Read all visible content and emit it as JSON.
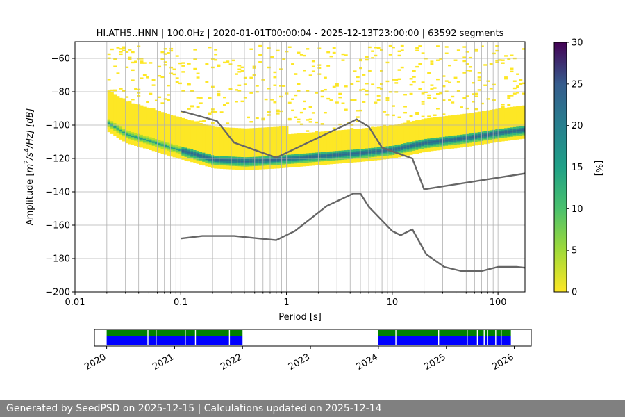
{
  "chart_data": {
    "type": "heatmap",
    "title": "HI.ATH5..HNN | 100.0Hz | 2020-01-01T00:00:04 - 2025-12-13T23:00:00 | 63592 segments",
    "xlabel": "Period [s]",
    "ylabel_parts": {
      "base": "Amplitude [",
      "m": "m",
      "exp1": "2",
      "s": "/s",
      "exp2": "4",
      "tail": "/Hz] [dB]"
    },
    "x_scale": "log",
    "xlim": [
      0.01,
      180
    ],
    "ylim": [
      -200,
      -50
    ],
    "x_ticks": [
      0.01,
      0.1,
      1,
      10,
      100
    ],
    "x_tick_labels": [
      "0.01",
      "0.1",
      "1",
      "10",
      "100"
    ],
    "y_ticks": [
      -60,
      -80,
      -100,
      -120,
      -140,
      -160,
      -180,
      -200
    ],
    "y_tick_labels": [
      "−60",
      "−80",
      "−100",
      "−120",
      "−140",
      "−160",
      "−180",
      "−200"
    ],
    "grid": true,
    "colormap": "viridis_r",
    "colorbar": {
      "label": "[%]",
      "range": [
        0,
        30
      ],
      "ticks": [
        0,
        5,
        10,
        15,
        20,
        25,
        30
      ],
      "tick_labels": [
        "0",
        "5",
        "10",
        "15",
        "20",
        "25",
        "30"
      ]
    },
    "colors": {
      "low": "#fde725",
      "mid": "#21918c",
      "high": "#440154",
      "model_line": "#666666"
    },
    "density_band": [
      {
        "period": 0.02,
        "center": -99,
        "spread": 7
      },
      {
        "period": 0.03,
        "center": -106,
        "spread": 8
      },
      {
        "period": 0.05,
        "center": -110,
        "spread": 8
      },
      {
        "period": 0.08,
        "center": -114,
        "spread": 8
      },
      {
        "period": 0.12,
        "center": -117,
        "spread": 8
      },
      {
        "period": 0.2,
        "center": -121,
        "spread": 7
      },
      {
        "period": 0.4,
        "center": -122,
        "spread": 6
      },
      {
        "period": 0.8,
        "center": -121,
        "spread": 6
      },
      {
        "period": 2,
        "center": -119,
        "spread": 6
      },
      {
        "period": 5,
        "center": -117,
        "spread": 7
      },
      {
        "period": 10,
        "center": -115,
        "spread": 7
      },
      {
        "period": 20,
        "center": -111,
        "spread": 7
      },
      {
        "period": 50,
        "center": -108,
        "spread": 7
      },
      {
        "period": 100,
        "center": -105,
        "spread": 7
      },
      {
        "period": 180,
        "center": -103,
        "spread": 7
      }
    ],
    "series": [
      {
        "values": [
          [
            0.1,
            -91.5
          ],
          [
            0.22,
            -97.5
          ],
          [
            0.32,
            -110.5
          ],
          [
            0.8,
            -119.5
          ],
          [
            4,
            -98.5
          ],
          [
            4.6,
            -96.5
          ],
          [
            6,
            -101
          ],
          [
            8,
            -113.5
          ],
          [
            15.5,
            -120
          ],
          [
            20,
            -138.5
          ],
          [
            180,
            -129
          ]
        ]
      },
      {
        "values": [
          [
            0.1,
            -168
          ],
          [
            0.16,
            -166.5
          ],
          [
            0.32,
            -166.5
          ],
          [
            0.8,
            -169
          ],
          [
            1.2,
            -163.5
          ],
          [
            2.4,
            -148.5
          ],
          [
            4.3,
            -141
          ],
          [
            5,
            -141
          ],
          [
            6,
            -149
          ],
          [
            10,
            -163.5
          ],
          [
            12,
            -166
          ],
          [
            15.5,
            -162.5
          ],
          [
            21,
            -177.5
          ],
          [
            31,
            -185
          ],
          [
            45,
            -187.5
          ],
          [
            70,
            -187.5
          ],
          [
            100,
            -185
          ],
          [
            150,
            -185
          ],
          [
            180,
            -185.5
          ]
        ]
      }
    ],
    "availability": {
      "x_ticks": [
        "2020",
        "2021",
        "2022",
        "2023",
        "2024",
        "2025",
        "2026"
      ],
      "range": [
        2019.82,
        2026.25
      ],
      "colors": {
        "gaps": "#008000",
        "data": "#0000ff"
      },
      "segments": [
        [
          2020.0,
          2022.0
        ],
        [
          2024.0,
          2025.95
        ]
      ],
      "gap_marks": [
        2020.6,
        2020.72,
        2021.15,
        2021.3,
        2021.8,
        2024.25,
        2024.88,
        2025.3,
        2025.45,
        2025.55,
        2025.6,
        2025.72,
        2025.8
      ]
    }
  },
  "footer": {
    "text": "Generated by SeedPSD on 2025-12-15 | Calculations updated on 2025-12-14"
  }
}
